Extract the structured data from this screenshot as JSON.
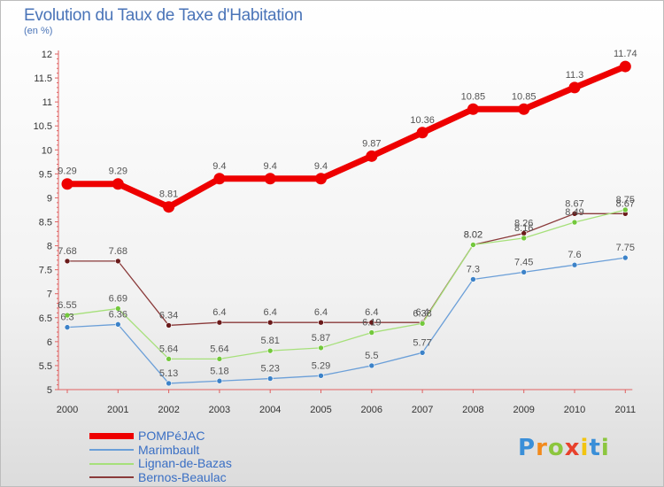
{
  "title": "Evolution du Taux de Taxe d'Habitation",
  "subtitle": "(en %)",
  "logo": {
    "letters": [
      "P",
      "r",
      "o",
      "x",
      "i",
      "t",
      "i"
    ],
    "colors": [
      "#3a8fd8",
      "#f28a1c",
      "#8cc63e",
      "#e8412c",
      "#f2c40f",
      "#3a8fd8",
      "#8cc63e"
    ]
  },
  "chart_data": {
    "type": "line",
    "title": "Evolution du Taux de Taxe d'Habitation",
    "ylabel": "(en %)",
    "xlabel": "",
    "ylim": [
      5,
      12
    ],
    "yticks": [
      "5",
      "5.5",
      "6",
      "6.5",
      "7",
      "7.5",
      "8",
      "8.5",
      "9",
      "9.5",
      "10",
      "10.5",
      "11",
      "11.5",
      "12"
    ],
    "categories": [
      "2000",
      "2001",
      "2002",
      "2003",
      "2004",
      "2005",
      "2006",
      "2007",
      "2008",
      "2009",
      "2010",
      "2011"
    ],
    "grid": false,
    "legend_position": "bottom-left",
    "series": [
      {
        "name": "POMPéJAC",
        "color": "#ee0000",
        "width": 7,
        "dot": 6.5,
        "values": [
          9.29,
          9.29,
          8.81,
          9.4,
          9.4,
          9.4,
          9.87,
          10.36,
          10.85,
          10.85,
          11.3,
          11.74
        ],
        "labels": [
          "9.29",
          "9.29",
          "8.81",
          "9.4",
          "9.4",
          "9.4",
          "9.87",
          "10.36",
          "10.85",
          "10.85",
          "11.3",
          "11.74"
        ]
      },
      {
        "name": "Marimbault",
        "color": "#6b9fd8",
        "dotColor": "#3c82c8",
        "width": 1.3,
        "dot": 3,
        "values": [
          6.3,
          6.36,
          5.13,
          5.18,
          5.23,
          5.29,
          5.5,
          5.77,
          7.3,
          7.45,
          7.6,
          7.75
        ],
        "labels": [
          "6.3",
          "6.36",
          "5.13",
          "5.18",
          "5.23",
          "5.29",
          "5.5",
          "5.77",
          "7.3",
          "7.45",
          "7.6",
          "7.75"
        ]
      },
      {
        "name": "Lignan-de-Bazas",
        "color": "#a6e07a",
        "dotColor": "#73c83c",
        "width": 1.3,
        "dot": 3,
        "values": [
          6.55,
          6.69,
          5.64,
          5.64,
          5.81,
          5.87,
          6.19,
          6.38,
          8.02,
          8.16,
          8.49,
          8.75
        ],
        "labels": [
          "6.55",
          "6.69",
          "5.64",
          "5.64",
          "5.81",
          "5.87",
          "6.19",
          "6.38",
          "8.02",
          "8.16",
          "8.49",
          "8.75"
        ]
      },
      {
        "name": "Bernos-Beaulac",
        "color": "#8a3a3a",
        "dotColor": "#6a1a1a",
        "width": 1.3,
        "dot": 3,
        "values": [
          7.68,
          7.68,
          6.34,
          6.4,
          6.4,
          6.4,
          6.4,
          6.4,
          8.02,
          8.26,
          8.67,
          8.67
        ],
        "labels": [
          "7.68",
          "7.68",
          "6.34",
          "6.4",
          "6.4",
          "6.4",
          "6.4",
          "6.4",
          "8.02",
          "8.26",
          "8.67",
          "8.67"
        ]
      }
    ]
  }
}
